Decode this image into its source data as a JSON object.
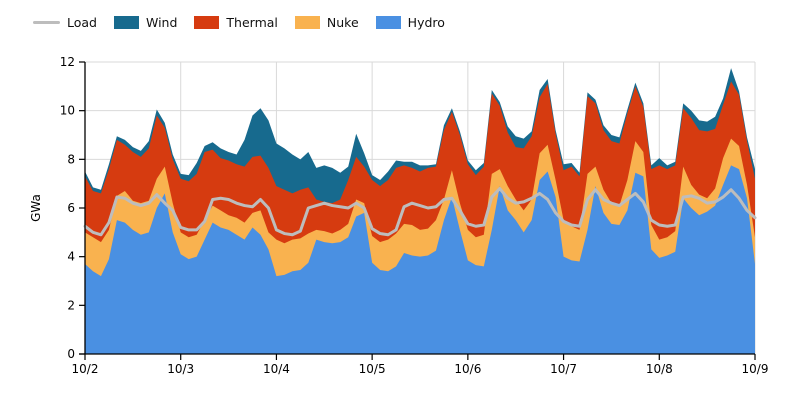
{
  "legend": {
    "items": [
      {
        "label": "Load",
        "color": "#bdbdbd",
        "type": "line"
      },
      {
        "label": "Wind",
        "color": "#176a8e",
        "type": "box"
      },
      {
        "label": "Thermal",
        "color": "#d63b10",
        "type": "box"
      },
      {
        "label": "Nuke",
        "color": "#f9b24f",
        "type": "box"
      },
      {
        "label": "Hydro",
        "color": "#4a90e2",
        "type": "box"
      }
    ]
  },
  "chart_data": {
    "type": "area",
    "stacked": true,
    "title": "",
    "xlabel": "",
    "ylabel": "GWa",
    "ylim": [
      0,
      12
    ],
    "grid": true,
    "legend_position": "top-left",
    "y_ticks": [
      0,
      2,
      4,
      6,
      8,
      10,
      12
    ],
    "x_tick_labels": [
      "10/2",
      "10/3",
      "10/4",
      "10/5",
      "10/6",
      "10/7",
      "10/8",
      "10/9"
    ],
    "x_start": "10/2 00:00",
    "x_step_hours": 2,
    "series": [
      {
        "name": "Hydro",
        "color": "#4a90e2",
        "values": [
          3.7,
          3.4,
          3.2,
          3.9,
          5.5,
          5.4,
          5.1,
          4.9,
          5.0,
          6.0,
          6.6,
          5.0,
          4.1,
          3.9,
          4.0,
          4.7,
          5.4,
          5.2,
          5.1,
          4.9,
          4.7,
          5.2,
          4.9,
          4.3,
          3.2,
          3.25,
          3.4,
          3.45,
          3.75,
          4.7,
          4.6,
          4.55,
          4.6,
          4.8,
          5.65,
          5.8,
          3.75,
          3.45,
          3.4,
          3.6,
          4.15,
          4.05,
          4.0,
          4.05,
          4.25,
          5.5,
          6.45,
          5.1,
          3.85,
          3.65,
          3.6,
          5.1,
          6.9,
          5.9,
          5.5,
          5.0,
          5.5,
          7.15,
          7.5,
          6.45,
          4.0,
          3.85,
          3.8,
          5.1,
          6.9,
          5.8,
          5.35,
          5.3,
          5.9,
          7.45,
          7.3,
          4.3,
          3.95,
          4.05,
          4.2,
          6.4,
          6.0,
          5.7,
          5.85,
          6.1,
          6.95,
          7.75,
          7.6,
          6.4,
          3.7
        ]
      },
      {
        "name": "Nuke",
        "color": "#f9b24f",
        "values": [
          1.3,
          1.4,
          1.4,
          1.2,
          1.0,
          1.3,
          1.2,
          1.3,
          1.3,
          1.2,
          1.1,
          1.2,
          0.9,
          0.9,
          0.9,
          0.8,
          0.7,
          0.7,
          0.6,
          0.7,
          0.7,
          0.6,
          1.0,
          0.7,
          1.5,
          1.3,
          1.3,
          1.3,
          1.2,
          0.4,
          0.45,
          0.4,
          0.5,
          0.55,
          0.7,
          0.4,
          1.1,
          1.15,
          1.3,
          1.35,
          1.2,
          1.25,
          1.1,
          1.1,
          1.25,
          0.85,
          1.1,
          1.1,
          1.25,
          1.15,
          1.3,
          2.3,
          0.7,
          1.0,
          0.85,
          0.9,
          0.85,
          1.1,
          1.1,
          0.7,
          1.5,
          1.4,
          1.3,
          2.3,
          0.8,
          0.95,
          0.85,
          0.8,
          1.25,
          1.3,
          1.0,
          1.0,
          0.75,
          0.75,
          0.85,
          1.3,
          0.95,
          0.85,
          0.55,
          0.7,
          1.1,
          1.1,
          0.95,
          0.55,
          1.1
        ]
      },
      {
        "name": "Thermal",
        "color": "#d63b10",
        "values": [
          2.3,
          1.9,
          2.0,
          2.5,
          2.3,
          1.9,
          2.0,
          1.9,
          2.15,
          2.6,
          1.6,
          1.8,
          2.2,
          2.3,
          2.5,
          2.8,
          2.3,
          2.15,
          2.25,
          2.2,
          2.3,
          2.3,
          2.25,
          2.65,
          2.2,
          2.2,
          1.9,
          2.0,
          1.9,
          1.25,
          1.2,
          1.25,
          1.25,
          1.8,
          1.75,
          1.5,
          2.3,
          2.3,
          2.45,
          2.7,
          2.4,
          2.35,
          2.4,
          2.5,
          2.2,
          2.85,
          2.4,
          2.8,
          2.7,
          2.55,
          2.8,
          3.3,
          2.6,
          2.2,
          2.15,
          2.55,
          2.6,
          2.3,
          2.5,
          1.9,
          2.05,
          2.45,
          2.2,
          3.2,
          2.6,
          2.45,
          2.55,
          2.55,
          2.75,
          2.25,
          1.85,
          2.3,
          3.05,
          2.8,
          2.7,
          2.4,
          2.75,
          2.65,
          2.75,
          2.45,
          2.2,
          2.35,
          2.1,
          1.8,
          2.4
        ]
      },
      {
        "name": "Wind",
        "color": "#176a8e",
        "values": [
          0.2,
          0.15,
          0.15,
          0.2,
          0.15,
          0.2,
          0.2,
          0.25,
          0.3,
          0.25,
          0.2,
          0.2,
          0.2,
          0.25,
          0.45,
          0.25,
          0.3,
          0.4,
          0.35,
          0.4,
          1.1,
          1.7,
          1.95,
          1.95,
          1.75,
          1.7,
          1.6,
          1.25,
          1.45,
          1.3,
          1.5,
          1.45,
          1.1,
          0.55,
          0.95,
          0.55,
          0.2,
          0.25,
          0.35,
          0.3,
          0.15,
          0.25,
          0.25,
          0.1,
          0.1,
          0.2,
          0.15,
          0.15,
          0.15,
          0.2,
          0.15,
          0.15,
          0.15,
          0.25,
          0.45,
          0.4,
          0.2,
          0.3,
          0.2,
          0.15,
          0.25,
          0.15,
          0.15,
          0.15,
          0.15,
          0.2,
          0.25,
          0.25,
          0.15,
          0.15,
          0.15,
          0.15,
          0.3,
          0.15,
          0.15,
          0.2,
          0.3,
          0.4,
          0.4,
          0.5,
          0.25,
          0.55,
          0.15,
          0.15,
          0.4
        ]
      }
    ],
    "load_line": {
      "name": "Load",
      "color": "#bdbdbd",
      "values": [
        5.25,
        5.0,
        4.9,
        5.4,
        6.45,
        6.4,
        6.2,
        6.1,
        6.2,
        6.55,
        6.2,
        5.9,
        5.2,
        5.1,
        5.1,
        5.45,
        6.35,
        6.4,
        6.35,
        6.2,
        6.1,
        6.05,
        6.35,
        6.0,
        5.1,
        4.95,
        4.9,
        5.05,
        6.0,
        6.1,
        6.2,
        6.1,
        6.05,
        6.0,
        6.2,
        6.0,
        5.15,
        4.95,
        4.9,
        5.1,
        6.05,
        6.2,
        6.1,
        6.0,
        6.05,
        6.35,
        6.4,
        5.9,
        5.35,
        5.25,
        5.3,
        6.45,
        6.8,
        6.4,
        6.2,
        6.25,
        6.4,
        6.6,
        6.35,
        5.8,
        5.45,
        5.3,
        5.25,
        6.35,
        6.75,
        6.35,
        6.2,
        6.1,
        6.35,
        6.6,
        6.25,
        5.5,
        5.3,
        5.25,
        5.3,
        6.45,
        6.5,
        6.4,
        6.2,
        6.25,
        6.45,
        6.75,
        6.4,
        5.9,
        5.6
      ]
    }
  }
}
